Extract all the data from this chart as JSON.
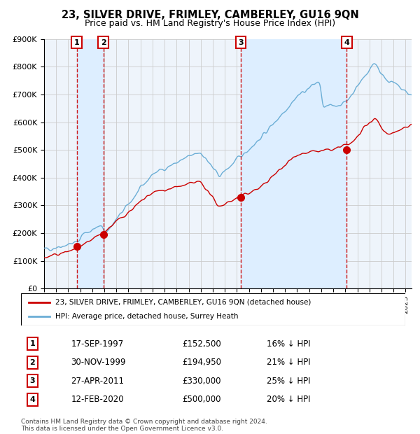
{
  "title": "23, SILVER DRIVE, FRIMLEY, CAMBERLEY, GU16 9QN",
  "subtitle": "Price paid vs. HM Land Registry's House Price Index (HPI)",
  "legend_line1": "23, SILVER DRIVE, FRIMLEY, CAMBERLEY, GU16 9QN (detached house)",
  "legend_line2": "HPI: Average price, detached house, Surrey Heath",
  "footer1": "Contains HM Land Registry data © Crown copyright and database right 2024.",
  "footer2": "This data is licensed under the Open Government Licence v3.0.",
  "transactions": [
    {
      "num": 1,
      "date": "17-SEP-1997",
      "price": 152500,
      "pct": "16%",
      "year": 1997.71
    },
    {
      "num": 2,
      "date": "30-NOV-1999",
      "price": 194950,
      "pct": "21%",
      "year": 1999.92
    },
    {
      "num": 3,
      "date": "27-APR-2011",
      "price": 330000,
      "pct": "25%",
      "year": 2011.32
    },
    {
      "num": 4,
      "date": "12-FEB-2020",
      "price": 500000,
      "pct": "20%",
      "year": 2020.12
    }
  ],
  "hpi_color": "#6baed6",
  "price_color": "#cc0000",
  "vline_color": "#cc0000",
  "shade_color": "#ddeeff",
  "bg_color": "#eef4fb",
  "grid_color": "#cccccc",
  "ylim": [
    0,
    900000
  ],
  "yticks": [
    0,
    100000,
    200000,
    300000,
    400000,
    500000,
    600000,
    700000,
    800000,
    900000
  ],
  "ytick_labels": [
    "£0",
    "£100K",
    "£200K",
    "£300K",
    "£400K",
    "£500K",
    "£600K",
    "£700K",
    "£800K",
    "£900K"
  ],
  "xlim_start": 1995.0,
  "xlim_end": 2025.5,
  "trans_dot_prices": [
    152500,
    194950,
    330000,
    500000
  ]
}
